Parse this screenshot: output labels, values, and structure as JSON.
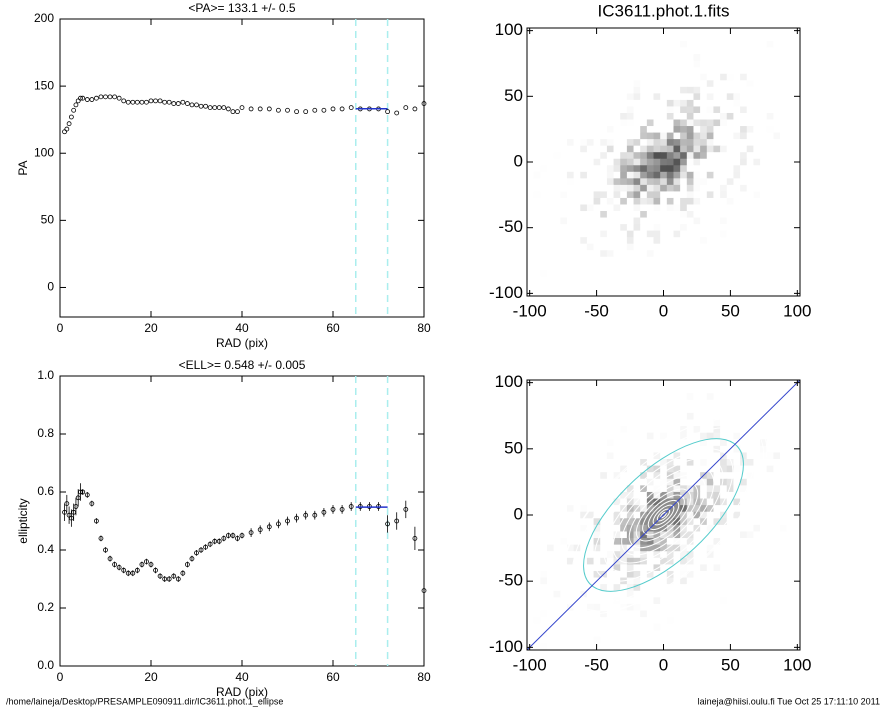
{
  "chart_data": [
    {
      "type": "scatter",
      "title": "<PA>= 133.1 +/-   0.5",
      "xlabel": "RAD (pix)",
      "ylabel": "PA",
      "xlim": [
        0,
        80
      ],
      "xticks": [
        0,
        20,
        40,
        60,
        80
      ],
      "ylim": [
        -22,
        200
      ],
      "yticks": [
        0,
        50,
        100,
        150,
        200
      ],
      "color": "#000000",
      "vlines": [
        65,
        72
      ],
      "vline_color": "#aaeeee",
      "fit": {
        "x": [
          65,
          72
        ],
        "y": 133.1
      },
      "fit_color": "#2233cc",
      "x": [
        1,
        1.5,
        2,
        2.5,
        3,
        3.5,
        4,
        4.5,
        5,
        6,
        7,
        8,
        9,
        10,
        11,
        12,
        13,
        14,
        15,
        16,
        17,
        18,
        19,
        20,
        21,
        22,
        23,
        24,
        25,
        26,
        27,
        28,
        29,
        30,
        31,
        32,
        33,
        34,
        35,
        36,
        37,
        38,
        39,
        40,
        42,
        44,
        46,
        48,
        50,
        52,
        54,
        56,
        58,
        60,
        62,
        64,
        66,
        68,
        70,
        72,
        74,
        76,
        78,
        80
      ],
      "values": [
        116,
        118,
        122,
        127,
        132,
        136,
        139,
        141,
        141,
        140,
        140,
        141,
        142,
        142,
        142,
        142,
        141,
        139,
        138,
        138,
        138,
        138,
        138,
        139,
        139,
        139,
        138,
        138,
        137,
        137,
        138,
        137,
        136,
        136,
        135,
        135,
        134,
        134,
        134,
        134,
        133,
        131,
        131,
        134,
        133,
        133,
        133,
        132,
        132,
        131,
        131,
        132,
        132,
        133,
        133,
        134,
        133,
        133,
        133,
        131,
        130,
        134,
        133,
        137
      ]
    },
    {
      "type": "scatter",
      "title": "<ELL>= 0.548 +/-  0.005",
      "xlabel": "RAD (pix)",
      "ylabel": "ellipticity",
      "xlim": [
        0,
        80
      ],
      "xticks": [
        0,
        20,
        40,
        60,
        80
      ],
      "ylim": [
        0,
        1
      ],
      "yticks": [
        {
          "value": 0,
          "label": "0.0"
        },
        0.2,
        0.4,
        0.6,
        0.8,
        {
          "value": 1,
          "label": "1.0"
        }
      ],
      "color": "#000000",
      "vlines": [
        65,
        72
      ],
      "vline_color": "#aaeeee",
      "fit": {
        "x": [
          65,
          72
        ],
        "y": 0.548
      },
      "fit_color": "#2233cc",
      "x": [
        1,
        1.5,
        2,
        2.5,
        3,
        3.5,
        4,
        4.5,
        5,
        6,
        7,
        8,
        9,
        10,
        11,
        12,
        13,
        14,
        15,
        16,
        17,
        18,
        19,
        20,
        21,
        22,
        23,
        24,
        25,
        26,
        27,
        28,
        29,
        30,
        31,
        32,
        33,
        34,
        35,
        36,
        37,
        38,
        39,
        40,
        42,
        44,
        46,
        48,
        50,
        52,
        54,
        56,
        58,
        60,
        62,
        64,
        66,
        68,
        70,
        72,
        74,
        76,
        78,
        80
      ],
      "values": [
        0.53,
        0.56,
        0.52,
        0.51,
        0.53,
        0.55,
        0.58,
        0.6,
        0.6,
        0.59,
        0.56,
        0.5,
        0.44,
        0.4,
        0.37,
        0.35,
        0.34,
        0.33,
        0.32,
        0.32,
        0.33,
        0.35,
        0.36,
        0.35,
        0.33,
        0.31,
        0.3,
        0.3,
        0.31,
        0.3,
        0.32,
        0.35,
        0.37,
        0.39,
        0.4,
        0.41,
        0.42,
        0.43,
        0.43,
        0.44,
        0.45,
        0.45,
        0.44,
        0.45,
        0.46,
        0.47,
        0.48,
        0.49,
        0.5,
        0.51,
        0.52,
        0.52,
        0.53,
        0.54,
        0.54,
        0.55,
        0.55,
        0.55,
        0.55,
        0.49,
        0.5,
        0.54,
        0.44,
        0.26
      ],
      "errors": [
        0.03,
        0.03,
        0.03,
        0.03,
        0.03,
        0.03,
        0.03,
        0.03,
        0.01,
        0.01,
        0.01,
        0.01,
        0.01,
        0.01,
        0.01,
        0.01,
        0.01,
        0.01,
        0.01,
        0.01,
        0.01,
        0.01,
        0.01,
        0.01,
        0.01,
        0.01,
        0.01,
        0.01,
        0.01,
        0.01,
        0.01,
        0.01,
        0.01,
        0.01,
        0.01,
        0.01,
        0.01,
        0.01,
        0.01,
        0.01,
        0.01,
        0.01,
        0.01,
        0.01,
        0.015,
        0.015,
        0.015,
        0.015,
        0.015,
        0.015,
        0.015,
        0.015,
        0.015,
        0.015,
        0.015,
        0.015,
        0.015,
        0.015,
        0.015,
        0.03,
        0.03,
        0.03,
        0.04,
        0.04
      ]
    },
    {
      "type": "image",
      "title": "IC3611.phot.1.fits",
      "xlim": [
        -102,
        102
      ],
      "xticks": [
        -100,
        -50,
        0,
        50,
        100
      ],
      "ylim": [
        -102,
        102
      ],
      "yticks": [
        -100,
        -50,
        0,
        50,
        100
      ]
    },
    {
      "type": "image",
      "contours": true,
      "xlim": [
        -102,
        102
      ],
      "xticks": [
        -100,
        -50,
        0,
        50,
        100
      ],
      "ylim": [
        -102,
        102
      ],
      "yticks": [
        -100,
        -50,
        0,
        50,
        100
      ]
    }
  ],
  "footer": {
    "left": "/home/laineja/Desktop/PRESAMPLE090911.dir/IC3611.phot.1_ellipse",
    "right": "laineja@hiisi.oulu.fi  Tue Oct 25 17:11:10 2011"
  }
}
